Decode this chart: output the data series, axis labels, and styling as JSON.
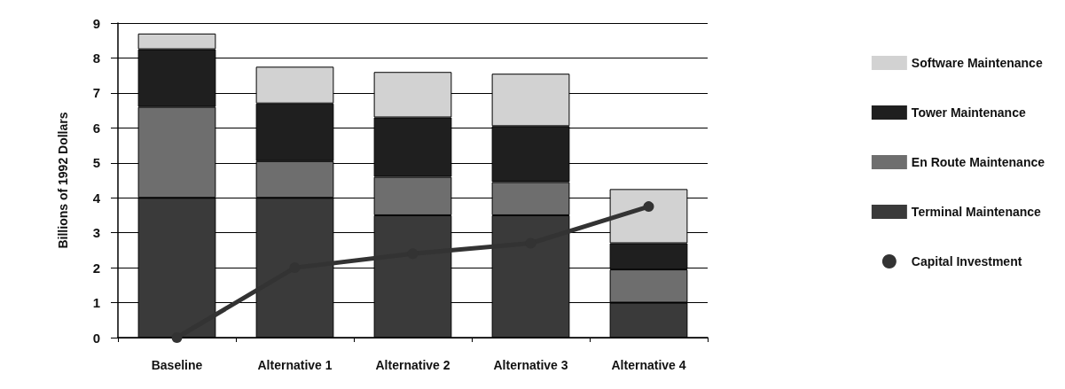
{
  "chart_data": {
    "type": "bar",
    "ylabel": "Billions of 1992 Dollars",
    "categories": [
      "Baseline",
      "Alternative 1",
      "Alternative 2",
      "Alternative 3",
      "Alternative 4"
    ],
    "stacked": true,
    "series": [
      {
        "name": "Terminal Maintenance",
        "color": "#3a3a3a",
        "values": [
          4.0,
          4.0,
          3.5,
          3.5,
          1.0
        ]
      },
      {
        "name": "En Route Maintenance",
        "color": "#6e6e6e",
        "values": [
          2.6,
          1.05,
          1.1,
          0.95,
          0.95
        ]
      },
      {
        "name": "Tower Maintenance",
        "color": "#1f1f1f",
        "values": [
          1.65,
          1.65,
          1.7,
          1.6,
          0.75
        ]
      },
      {
        "name": "Software Maintenance",
        "color": "#d2d2d2",
        "values": [
          0.45,
          1.05,
          1.3,
          1.5,
          1.55
        ]
      },
      {
        "name": "Capital Investment",
        "type": "line",
        "color": "#333333",
        "values": [
          0,
          2.0,
          2.4,
          2.7,
          3.75
        ]
      }
    ],
    "ylim": [
      0,
      9
    ],
    "yticks": [
      0,
      1,
      2,
      3,
      4,
      5,
      6,
      7,
      8,
      9
    ],
    "grid": "y",
    "legend": "right",
    "marker": "circle"
  }
}
